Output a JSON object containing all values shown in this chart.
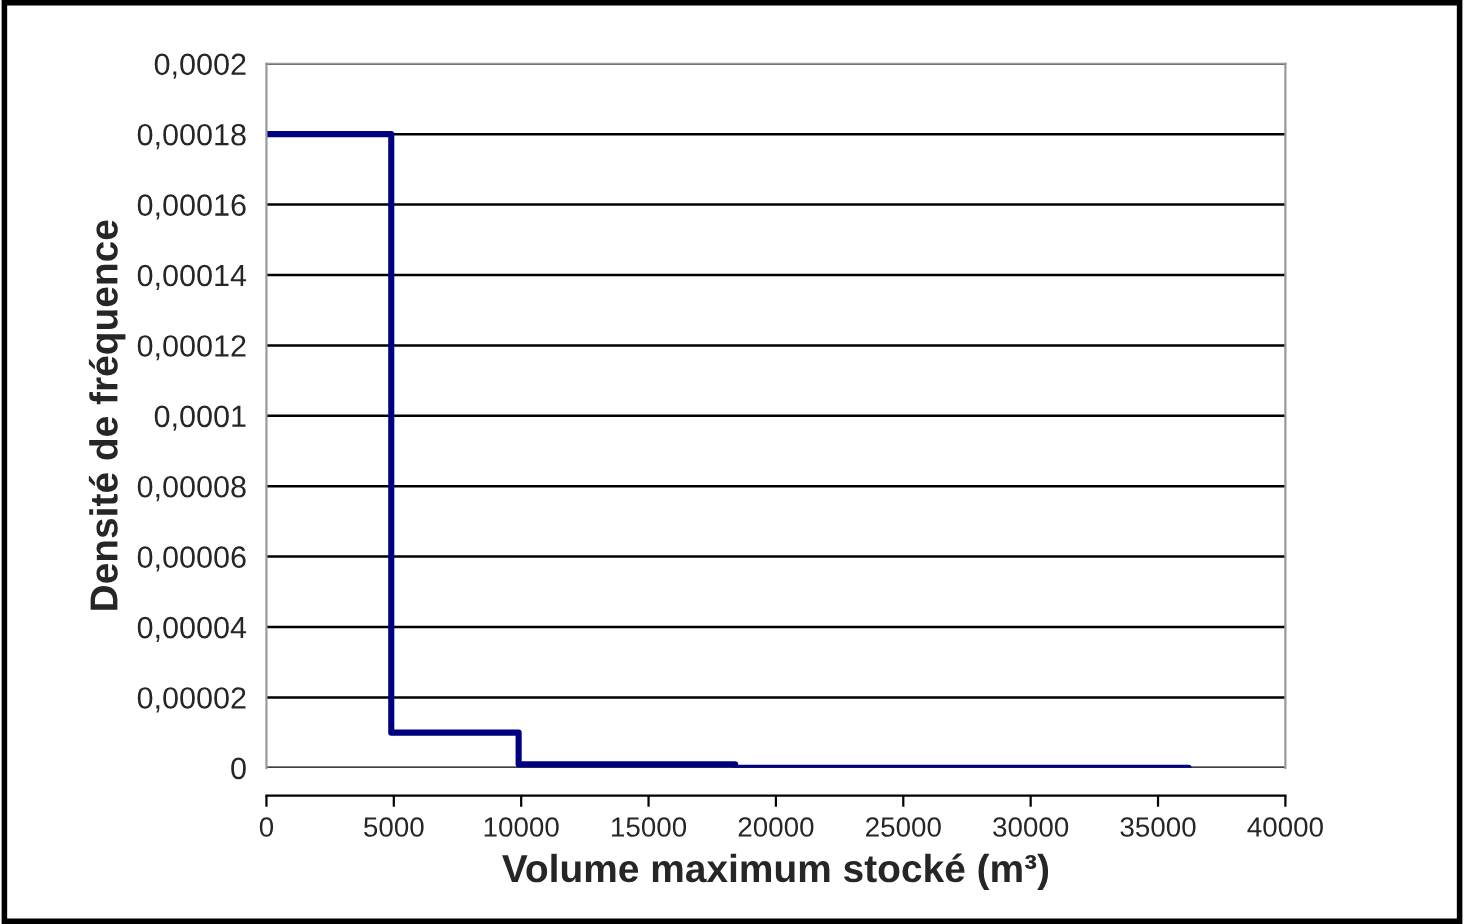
{
  "chart_data": {
    "type": "step",
    "xlabel": "Volume maximum stocké (m³)",
    "ylabel": "Densité de fréquence",
    "x": [
      0,
      4900,
      9900,
      18400,
      36200
    ],
    "series": [
      {
        "color": "#000080",
        "values": [
          0.00018,
          1e-05,
          1e-06,
          0,
          0
        ]
      }
    ],
    "xlim": [
      0,
      40000
    ],
    "xticks": [
      0,
      5000,
      10000,
      15000,
      20000,
      25000,
      30000,
      35000,
      40000
    ],
    "ylim": [
      0,
      0.0002
    ],
    "yticks": [
      {
        "value": 0,
        "label": "0"
      },
      {
        "value": 2e-05,
        "label": "0,00002"
      },
      {
        "value": 4e-05,
        "label": "0,00004"
      },
      {
        "value": 6e-05,
        "label": "0,00006"
      },
      {
        "value": 8e-05,
        "label": "0,00008"
      },
      {
        "value": 0.0001,
        "label": "0,0001"
      },
      {
        "value": 0.00012,
        "label": "0,00012"
      },
      {
        "value": 0.00014,
        "label": "0,00014"
      },
      {
        "value": 0.00016,
        "label": "0,00016"
      },
      {
        "value": 0.00018,
        "label": "0,00018"
      },
      {
        "value": 0.0002,
        "label": "0,0002"
      }
    ],
    "grid": "y",
    "legend": false,
    "line_style": "solid"
  }
}
